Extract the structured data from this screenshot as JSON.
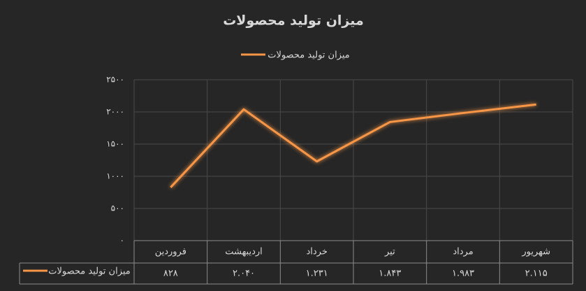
{
  "chart_data": {
    "type": "line",
    "title": "میزان تولید محصولات",
    "categories": [
      "فروردین",
      "اردیبهشت",
      "خرداد",
      "تیر",
      "مرداد",
      "شهریور"
    ],
    "series": [
      {
        "name": "میزان تولید محصولات",
        "color": "#f79646",
        "values": [
          828,
          2040,
          1231,
          1843,
          1983,
          2115
        ],
        "value_labels": [
          "۸۲۸",
          "۲.۰۴۰",
          "۱.۲۳۱",
          "۱.۸۴۳",
          "۱.۹۸۳",
          "۲.۱۱۵"
        ]
      }
    ],
    "ylim": [
      0,
      2500
    ],
    "yticks": [
      {
        "value": 0,
        "label": "۰"
      },
      {
        "value": 500,
        "label": "۵۰۰"
      },
      {
        "value": 1000,
        "label": "۱۰۰۰"
      },
      {
        "value": 1500,
        "label": "۱۵۰۰"
      },
      {
        "value": 2000,
        "label": "۲۰۰۰"
      },
      {
        "value": 2500,
        "label": "۲۵۰۰"
      }
    ],
    "grid": true
  }
}
